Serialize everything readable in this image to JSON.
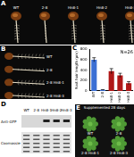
{
  "figure": {
    "A": {
      "letter": "A",
      "labels": [
        "WT",
        "2-8",
        "Hn8-1",
        "Hn8-2",
        "Hn8-3"
      ]
    },
    "B": {
      "letter": "B",
      "labels": [
        "WT",
        "2-8",
        "2-8 Hn8-1",
        "2-8 Hn8-3"
      ]
    },
    "C": {
      "letter": "C"
    },
    "D": {
      "letter": "D",
      "lanes": [
        "WT",
        "2-8",
        "Hn8-1",
        "Hn8-2",
        "Hn8-3"
      ],
      "rows": [
        "Anti-GFP",
        "Coomassie"
      ]
    },
    "E": {
      "letter": "E",
      "caption": "Supplemented 28 days",
      "labels": [
        "WT",
        "2-8",
        "2-8 Hn8-1",
        "2-8 Hn8-3"
      ]
    }
  },
  "chart_data": {
    "type": "bar",
    "y_label": "Root hair length (μm)",
    "annotation": "N=26",
    "categories": [
      "WT",
      "2-8",
      "Hn8-1",
      "Hn8-2",
      "Hn8-3"
    ],
    "values": [
      600,
      20,
      380,
      300,
      150
    ],
    "errors": [
      40,
      5,
      50,
      40,
      30
    ],
    "colors": [
      "#3b6fd4",
      "#3b6fd4",
      "#b01818",
      "#b01818",
      "#b01818"
    ],
    "ylim": [
      0,
      800
    ],
    "yticks": [
      0,
      200,
      400,
      600,
      800
    ],
    "grid": false
  }
}
